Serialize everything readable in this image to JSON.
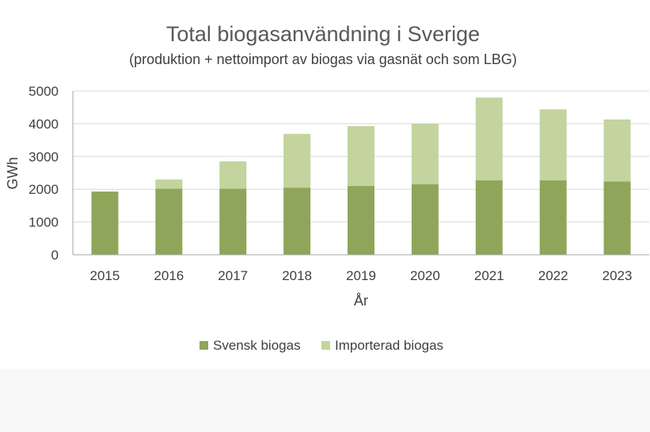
{
  "chart_data": {
    "type": "bar",
    "stacked": true,
    "title": "Total biogasanvändning i Sverige",
    "subtitle": "(produktion + nettoimport av biogas via gasnät och som LBG)",
    "xlabel": "År",
    "ylabel": "GWh",
    "categories": [
      "2015",
      "2016",
      "2017",
      "2018",
      "2019",
      "2020",
      "2021",
      "2022",
      "2023"
    ],
    "series": [
      {
        "name": "Svensk biogas",
        "color": "#8fa65a",
        "values": [
          1930,
          2020,
          2020,
          2050,
          2100,
          2150,
          2270,
          2270,
          2240
        ]
      },
      {
        "name": "Importerad biogas",
        "color": "#c3d49e",
        "values": [
          0,
          280,
          830,
          1640,
          1830,
          1850,
          2530,
          2170,
          1890
        ]
      }
    ],
    "ylim": [
      0,
      5000
    ],
    "yticks": [
      "0",
      "1000",
      "2000",
      "3000",
      "4000",
      "5000"
    ],
    "grid": true,
    "legend_position": "bottom"
  }
}
